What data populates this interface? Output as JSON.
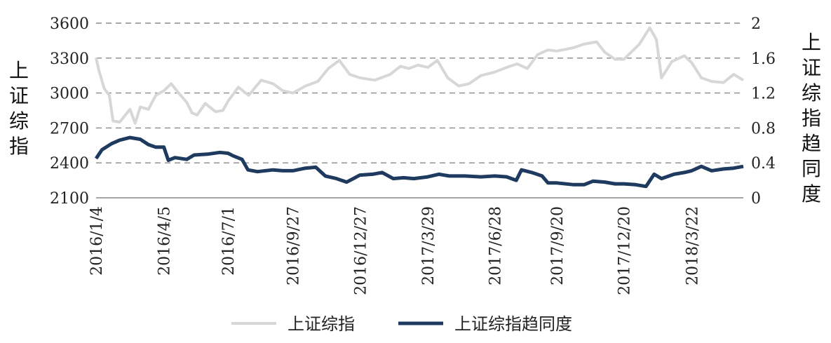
{
  "chart_data": {
    "type": "line",
    "title": "",
    "y_left_label": "上证综指",
    "y_right_label": "上证综指趋同度",
    "y_left": {
      "min": 2100,
      "max": 3600,
      "ticks": [
        "3600",
        "3300",
        "3000",
        "2700",
        "2400",
        "2100"
      ]
    },
    "y_right": {
      "min": 0,
      "max": 2,
      "ticks": [
        "2",
        "1.6",
        "1.2",
        "0.8",
        "0.4",
        "0"
      ]
    },
    "x_ticks": [
      "2016/1/4",
      "2016/4/5",
      "2016/7/1",
      "2016/9/27",
      "2016/12/27",
      "2017/3/29",
      "2017/6/28",
      "2017/9/20",
      "2017/12/20",
      "2018/3/22"
    ],
    "x_start": "2016/1/4",
    "x_end": "2018/5/31",
    "grid": "horizontal dashed",
    "legend_position": "bottom",
    "series": [
      {
        "name": "上证综指",
        "axis": "left",
        "color": "#d7d7d7",
        "points": [
          [
            "2016/1/4",
            3300
          ],
          [
            "2016/1/8",
            3190
          ],
          [
            "2016/1/15",
            3040
          ],
          [
            "2016/1/22",
            2980
          ],
          [
            "2016/1/27",
            2760
          ],
          [
            "2016/2/5",
            2750
          ],
          [
            "2016/2/19",
            2860
          ],
          [
            "2016/2/26",
            2740
          ],
          [
            "2016/3/4",
            2880
          ],
          [
            "2016/3/15",
            2860
          ],
          [
            "2016/3/25",
            2980
          ],
          [
            "2016/4/5",
            3020
          ],
          [
            "2016/4/15",
            3080
          ],
          [
            "2016/4/25",
            3000
          ],
          [
            "2016/5/6",
            2920
          ],
          [
            "2016/5/13",
            2830
          ],
          [
            "2016/5/20",
            2810
          ],
          [
            "2016/5/31",
            2910
          ],
          [
            "2016/6/14",
            2840
          ],
          [
            "2016/6/24",
            2850
          ],
          [
            "2016/7/1",
            2930
          ],
          [
            "2016/7/15",
            3050
          ],
          [
            "2016/7/29",
            2980
          ],
          [
            "2016/8/15",
            3110
          ],
          [
            "2016/8/31",
            3080
          ],
          [
            "2016/9/13",
            3020
          ],
          [
            "2016/9/27",
            3000
          ],
          [
            "2016/10/14",
            3060
          ],
          [
            "2016/10/31",
            3100
          ],
          [
            "2016/11/14",
            3210
          ],
          [
            "2016/11/29",
            3280
          ],
          [
            "2016/12/13",
            3160
          ],
          [
            "2016/12/27",
            3130
          ],
          [
            "2017/1/16",
            3110
          ],
          [
            "2017/2/6",
            3160
          ],
          [
            "2017/2/20",
            3230
          ],
          [
            "2017/3/3",
            3210
          ],
          [
            "2017/3/16",
            3240
          ],
          [
            "2017/3/29",
            3220
          ],
          [
            "2017/4/11",
            3280
          ],
          [
            "2017/4/25",
            3130
          ],
          [
            "2017/5/10",
            3060
          ],
          [
            "2017/5/24",
            3080
          ],
          [
            "2017/6/9",
            3150
          ],
          [
            "2017/6/28",
            3180
          ],
          [
            "2017/7/14",
            3220
          ],
          [
            "2017/7/28",
            3250
          ],
          [
            "2017/8/11",
            3210
          ],
          [
            "2017/8/25",
            3330
          ],
          [
            "2017/9/8",
            3370
          ],
          [
            "2017/9/20",
            3360
          ],
          [
            "2017/10/13",
            3390
          ],
          [
            "2017/10/27",
            3420
          ],
          [
            "2017/11/13",
            3440
          ],
          [
            "2017/11/24",
            3350
          ],
          [
            "2017/12/8",
            3290
          ],
          [
            "2017/12/20",
            3290
          ],
          [
            "2018/1/10",
            3420
          ],
          [
            "2018/1/24",
            3560
          ],
          [
            "2018/2/2",
            3460
          ],
          [
            "2018/2/9",
            3130
          ],
          [
            "2018/2/23",
            3270
          ],
          [
            "2018/3/12",
            3320
          ],
          [
            "2018/3/22",
            3260
          ],
          [
            "2018/4/4",
            3130
          ],
          [
            "2018/4/18",
            3100
          ],
          [
            "2018/5/4",
            3090
          ],
          [
            "2018/5/18",
            3160
          ],
          [
            "2018/5/31",
            3110
          ]
        ]
      },
      {
        "name": "上证综指趋同度",
        "axis": "right",
        "color": "#1f3a5f",
        "points": [
          [
            "2016/1/4",
            0.45
          ],
          [
            "2016/1/12",
            0.55
          ],
          [
            "2016/1/25",
            0.62
          ],
          [
            "2016/2/5",
            0.66
          ],
          [
            "2016/2/19",
            0.69
          ],
          [
            "2016/3/4",
            0.67
          ],
          [
            "2016/3/15",
            0.61
          ],
          [
            "2016/3/25",
            0.58
          ],
          [
            "2016/4/5",
            0.58
          ],
          [
            "2016/4/11",
            0.43
          ],
          [
            "2016/4/20",
            0.46
          ],
          [
            "2016/5/6",
            0.44
          ],
          [
            "2016/5/16",
            0.49
          ],
          [
            "2016/6/3",
            0.5
          ],
          [
            "2016/6/20",
            0.52
          ],
          [
            "2016/7/1",
            0.51
          ],
          [
            "2016/7/8",
            0.48
          ],
          [
            "2016/7/20",
            0.44
          ],
          [
            "2016/7/28",
            0.32
          ],
          [
            "2016/8/10",
            0.3
          ],
          [
            "2016/8/31",
            0.32
          ],
          [
            "2016/9/13",
            0.31
          ],
          [
            "2016/9/27",
            0.31
          ],
          [
            "2016/10/14",
            0.34
          ],
          [
            "2016/10/28",
            0.35
          ],
          [
            "2016/11/10",
            0.25
          ],
          [
            "2016/11/25",
            0.22
          ],
          [
            "2016/12/9",
            0.18
          ],
          [
            "2016/12/27",
            0.26
          ],
          [
            "2017/1/13",
            0.27
          ],
          [
            "2017/1/26",
            0.29
          ],
          [
            "2017/2/10",
            0.22
          ],
          [
            "2017/2/24",
            0.23
          ],
          [
            "2017/3/10",
            0.22
          ],
          [
            "2017/3/29",
            0.24
          ],
          [
            "2017/4/13",
            0.27
          ],
          [
            "2017/4/27",
            0.25
          ],
          [
            "2017/5/18",
            0.25
          ],
          [
            "2017/6/9",
            0.24
          ],
          [
            "2017/6/28",
            0.25
          ],
          [
            "2017/7/14",
            0.24
          ],
          [
            "2017/7/27",
            0.2
          ],
          [
            "2017/8/3",
            0.32
          ],
          [
            "2017/8/17",
            0.29
          ],
          [
            "2017/8/31",
            0.25
          ],
          [
            "2017/9/8",
            0.17
          ],
          [
            "2017/9/20",
            0.17
          ],
          [
            "2017/10/13",
            0.15
          ],
          [
            "2017/10/27",
            0.15
          ],
          [
            "2017/11/8",
            0.19
          ],
          [
            "2017/11/24",
            0.18
          ],
          [
            "2017/12/8",
            0.16
          ],
          [
            "2017/12/20",
            0.16
          ],
          [
            "2018/1/5",
            0.15
          ],
          [
            "2018/1/19",
            0.13
          ],
          [
            "2018/1/30",
            0.27
          ],
          [
            "2018/2/9",
            0.22
          ],
          [
            "2018/2/26",
            0.27
          ],
          [
            "2018/3/12",
            0.29
          ],
          [
            "2018/3/22",
            0.31
          ],
          [
            "2018/4/4",
            0.36
          ],
          [
            "2018/4/18",
            0.31
          ],
          [
            "2018/5/4",
            0.33
          ],
          [
            "2018/5/18",
            0.34
          ],
          [
            "2018/5/31",
            0.36
          ]
        ]
      }
    ]
  }
}
